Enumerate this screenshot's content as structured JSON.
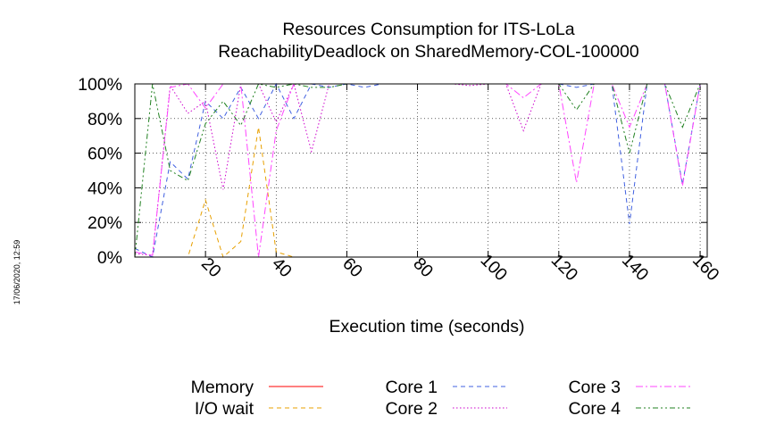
{
  "chart_data": {
    "type": "line",
    "title_line1": "Resources Consumption for ITS-LoLa",
    "title_line2": "ReachabilityDeadlock on SharedMemory-COL-100000",
    "xlabel": "Execution time (seconds)",
    "ylabel": "",
    "xlim": [
      0,
      162
    ],
    "ylim": [
      0,
      100
    ],
    "grid": true,
    "legend_position": "bottom",
    "x_ticks": [
      "20",
      "40",
      "60",
      "80",
      "100",
      "120",
      "140",
      "160"
    ],
    "y_ticks": [
      "0%",
      "20%",
      "40%",
      "60%",
      "80%",
      "100%"
    ],
    "side_stamp": "17/06/2020, 12:59",
    "series": [
      {
        "name": "Memory",
        "color": "#ff0000",
        "dash": "solid",
        "x": [
          0,
          162
        ],
        "y": [
          100,
          100
        ]
      },
      {
        "name": "I/O wait",
        "color": "#e8a000",
        "dash": "dashed",
        "x": [
          0,
          5,
          10,
          15,
          20,
          25,
          30,
          35,
          40,
          45,
          50,
          55,
          60
        ],
        "y": [
          0,
          0,
          0,
          0,
          33,
          0,
          9,
          75,
          3,
          0,
          0,
          0,
          0
        ]
      },
      {
        "name": "Core 1",
        "color": "#4060e0",
        "dash": "dashed",
        "x": [
          0,
          5,
          10,
          15,
          20,
          25,
          30,
          35,
          40,
          45,
          50,
          55,
          60,
          65,
          70,
          75,
          80,
          85,
          90,
          95,
          100,
          105,
          110,
          115,
          120,
          125,
          130,
          135,
          140,
          145,
          150,
          155,
          160
        ],
        "y": [
          5,
          0,
          55,
          45,
          90,
          80,
          98,
          80,
          100,
          80,
          100,
          98,
          100,
          98,
          100,
          100,
          100,
          100,
          100,
          100,
          100,
          100,
          100,
          100,
          100,
          98,
          100,
          100,
          19,
          100,
          100,
          42,
          100
        ]
      },
      {
        "name": "Core 2",
        "color": "#cc00cc",
        "dash": "dotted",
        "x": [
          0,
          5,
          10,
          15,
          20,
          25,
          30,
          35,
          40,
          45,
          50,
          55,
          60,
          65,
          70,
          75,
          80,
          85,
          90,
          95,
          100,
          105,
          110,
          115,
          120,
          125,
          130,
          135,
          140,
          145,
          150,
          155,
          160
        ],
        "y": [
          2,
          1,
          99,
          83,
          90,
          39,
          100,
          100,
          78,
          100,
          61,
          100,
          100,
          100,
          100,
          100,
          100,
          100,
          100,
          99,
          100,
          100,
          73,
          100,
          100,
          100,
          100,
          100,
          100,
          100,
          100,
          100,
          100
        ]
      },
      {
        "name": "Core 3",
        "color": "#ff44ff",
        "dash": "dashdot",
        "x": [
          0,
          5,
          10,
          15,
          20,
          25,
          30,
          35,
          40,
          45,
          50,
          55,
          60,
          65,
          70,
          75,
          80,
          85,
          90,
          95,
          100,
          105,
          110,
          115,
          120,
          125,
          130,
          135,
          140,
          145,
          150,
          155,
          160
        ],
        "y": [
          3,
          1,
          98,
          100,
          86,
          100,
          100,
          0,
          73,
          100,
          100,
          100,
          100,
          100,
          100,
          100,
          100,
          100,
          100,
          100,
          100,
          100,
          92,
          100,
          100,
          43,
          100,
          100,
          75,
          100,
          100,
          41,
          100
        ]
      },
      {
        "name": "Core 4",
        "color": "#208020",
        "dash": "dashdotdot",
        "x": [
          0,
          5,
          10,
          15,
          20,
          25,
          30,
          35,
          40,
          45,
          50,
          55,
          60,
          65,
          70,
          75,
          80,
          85,
          90,
          95,
          100,
          105,
          110,
          115,
          120,
          125,
          130,
          135,
          140,
          145,
          150,
          155,
          160
        ],
        "y": [
          0,
          100,
          50,
          44,
          77,
          90,
          76,
          100,
          98,
          100,
          98,
          98,
          100,
          100,
          100,
          100,
          100,
          100,
          100,
          100,
          100,
          100,
          100,
          100,
          100,
          85,
          100,
          100,
          60,
          100,
          100,
          75,
          100
        ]
      }
    ]
  }
}
